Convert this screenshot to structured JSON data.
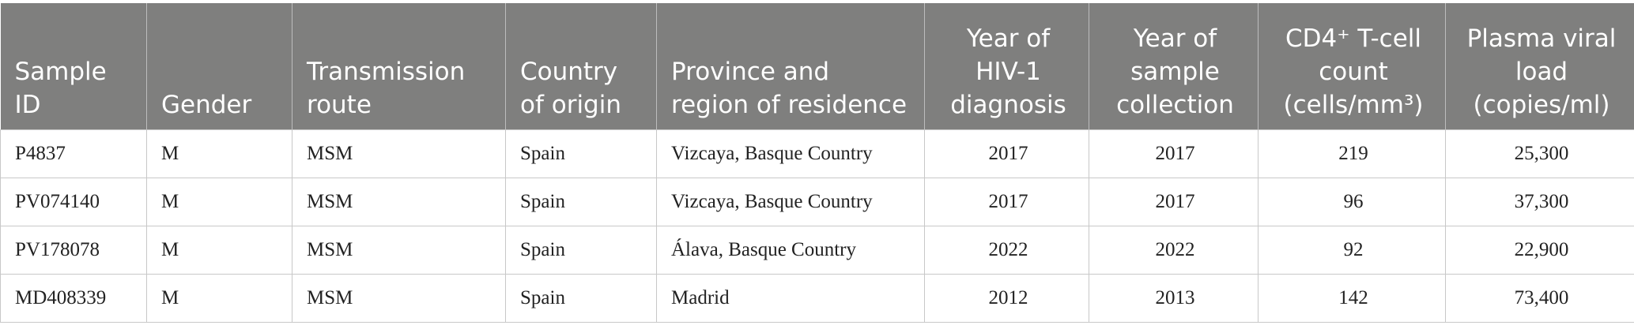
{
  "table": {
    "header": [
      "Sample ID",
      "Gender",
      "Transmission route",
      "Country of origin",
      "Province and region of residence",
      "Year of HIV-1 diagnosis",
      "Year of sample collection",
      "CD4⁺ T-cell count (cells/mm³)",
      "Plasma viral load (copies/ml)"
    ],
    "rows": [
      [
        "P4837",
        "M",
        "MSM",
        "Spain",
        "Vizcaya, Basque Country",
        "2017",
        "2017",
        "219",
        "25,300"
      ],
      [
        "PV074140",
        "M",
        "MSM",
        "Spain",
        "Vizcaya, Basque Country",
        "2017",
        "2017",
        "96",
        "37,300"
      ],
      [
        "PV178078",
        "M",
        "MSM",
        "Spain",
        "Álava, Basque Country",
        "2022",
        "2022",
        "92",
        "22,900"
      ],
      [
        "MD408339",
        "M",
        "MSM",
        "Spain",
        "Madrid",
        "2012",
        "2013",
        "142",
        "73,400"
      ]
    ]
  }
}
